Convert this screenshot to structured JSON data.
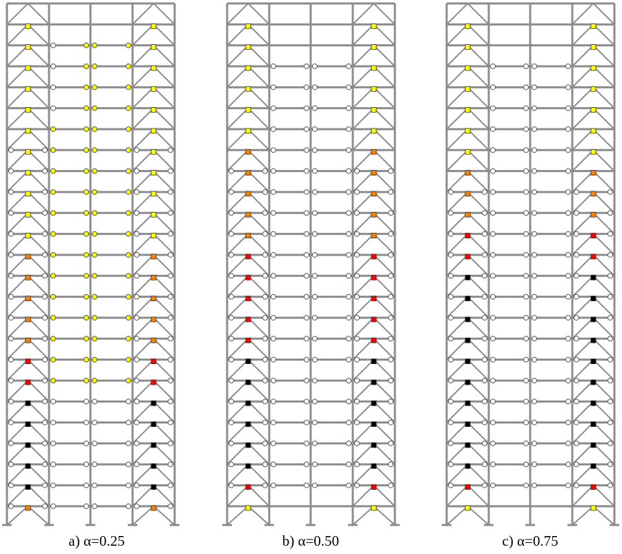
{
  "panels": [
    {
      "caption": "a) α=0.25"
    },
    {
      "caption": "b) α=0.50"
    },
    {
      "caption": "c) α=0.75"
    }
  ]
}
